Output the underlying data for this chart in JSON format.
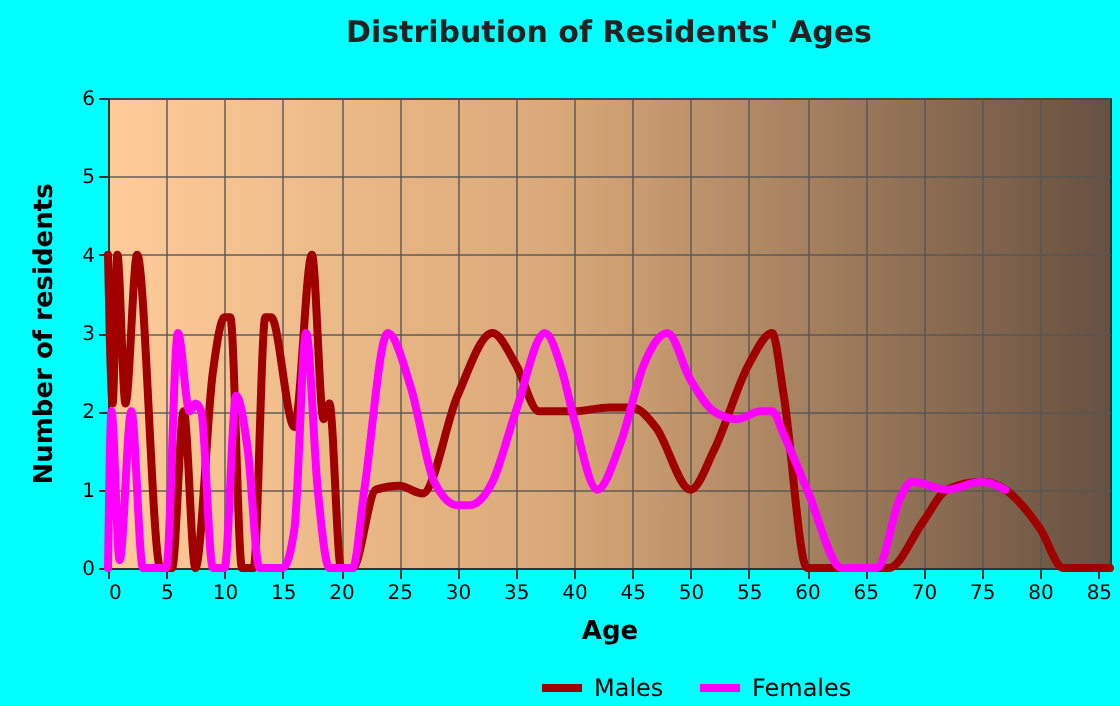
{
  "chart_data": {
    "type": "line",
    "title": "Distribution of Residents' Ages",
    "xlabel": "Age",
    "ylabel": "Number of residents",
    "xlim": [
      0,
      86
    ],
    "xticks": [
      0,
      5,
      10,
      15,
      20,
      25,
      30,
      35,
      40,
      45,
      50,
      55,
      60,
      65,
      70,
      75,
      80,
      85
    ],
    "ylim": [
      0,
      6
    ],
    "yticks": [
      0,
      1,
      2,
      3,
      4,
      5,
      6
    ],
    "grid": true,
    "legend": "bottom",
    "marker": "none",
    "line_style": "solid",
    "series": [
      {
        "name": "Males",
        "color": "#a00000",
        "x": [
          0,
          0.4,
          0.8,
          1.5,
          2.5,
          4.5,
          5.5,
          6.5,
          7.5,
          9,
          10,
          10.5,
          11.5,
          12.5,
          13.5,
          14,
          16,
          17.5,
          18.5,
          19,
          20,
          21,
          23,
          25,
          27,
          30,
          33,
          35,
          37,
          40,
          43,
          45,
          47,
          50,
          52,
          55,
          57,
          58,
          60,
          65,
          67,
          70,
          72,
          75,
          77,
          80,
          82,
          86
        ],
        "values": [
          4,
          2.1,
          4,
          2.1,
          4,
          0,
          0,
          2,
          0,
          2.5,
          3.2,
          3.2,
          0,
          0,
          3.2,
          3.2,
          1.8,
          4,
          1.9,
          2.1,
          0,
          0,
          1,
          1.05,
          0.95,
          2.2,
          3,
          2.6,
          2,
          2,
          2.05,
          2.05,
          1.8,
          1,
          1.5,
          2.6,
          3,
          2.2,
          0,
          0,
          0,
          0.6,
          1,
          1.1,
          1,
          0.5,
          0,
          0
        ]
      },
      {
        "name": "Females",
        "color": "#ff00ff",
        "x": [
          0,
          0.3,
          1,
          2,
          3,
          5,
          6,
          7,
          7.5,
          8,
          9,
          10,
          11,
          12,
          13,
          15,
          16,
          17,
          18,
          19,
          21,
          22,
          24,
          26,
          28,
          30,
          31,
          33,
          35,
          37.5,
          39,
          40,
          42,
          44,
          46,
          48,
          50,
          52,
          54,
          56,
          57,
          58,
          60,
          63,
          66,
          68,
          69,
          72,
          75,
          77
        ],
        "values": [
          0,
          2,
          0.1,
          2,
          0,
          0,
          3,
          2,
          2.1,
          2,
          0,
          0,
          2.2,
          1.5,
          0,
          0,
          0.5,
          3,
          1,
          0,
          0,
          1,
          3,
          2.3,
          1.1,
          0.8,
          0.8,
          1.1,
          2,
          3,
          2.5,
          1.9,
          1,
          1.6,
          2.6,
          3,
          2.4,
          2,
          1.9,
          2,
          2,
          1.7,
          1,
          0,
          0,
          0.9,
          1.1,
          1,
          1.1,
          1
        ]
      }
    ]
  }
}
